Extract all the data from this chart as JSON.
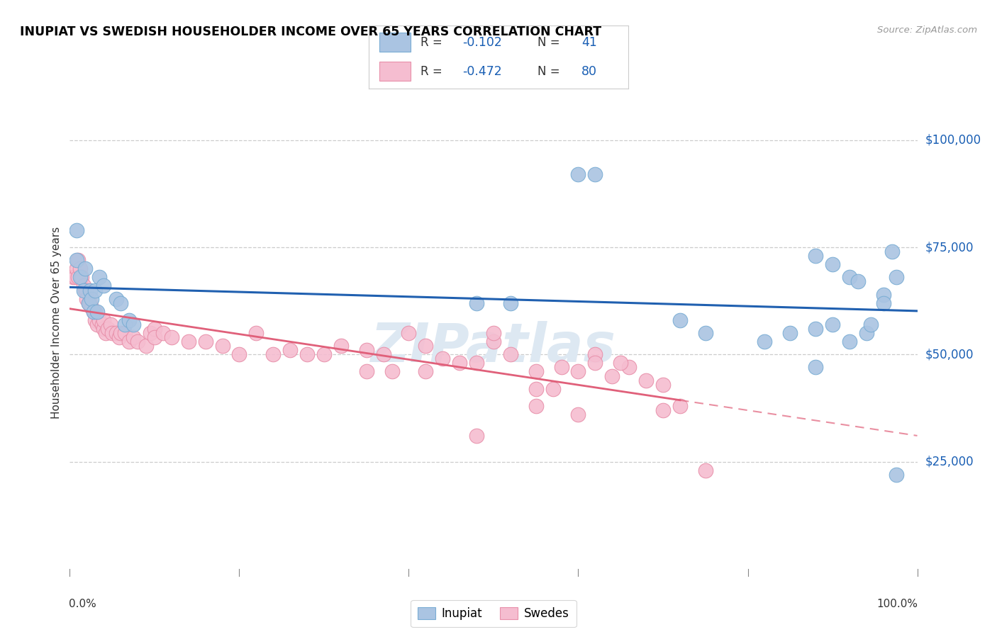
{
  "title": "INUPIAT VS SWEDISH HOUSEHOLDER INCOME OVER 65 YEARS CORRELATION CHART",
  "source": "Source: ZipAtlas.com",
  "ylabel": "Householder Income Over 65 years",
  "ytick_values": [
    25000,
    50000,
    75000,
    100000
  ],
  "ylim": [
    0,
    115000
  ],
  "xlim": [
    0.0,
    1.0
  ],
  "inupiat_color": "#aac4e2",
  "inupiat_edge": "#7aadd4",
  "swedes_color": "#f5bdd0",
  "swedes_edge": "#e890aa",
  "trendline_blue": "#2060b0",
  "trendline_pink": "#e0607a",
  "legend_text_color": "#1a5fb4",
  "watermark": "ZIPatlas",
  "inupiat_x": [
    0.008,
    0.008,
    0.012,
    0.016,
    0.018,
    0.022,
    0.024,
    0.026,
    0.028,
    0.03,
    0.032,
    0.035,
    0.04,
    0.055,
    0.06,
    0.065,
    0.07,
    0.075,
    0.48,
    0.52,
    0.6,
    0.62,
    0.88,
    0.9,
    0.92,
    0.93,
    0.94,
    0.96,
    0.97,
    0.975,
    0.88,
    0.9,
    0.92,
    0.945,
    0.96,
    0.72,
    0.75,
    0.82,
    0.85,
    0.88,
    0.975
  ],
  "inupiat_y": [
    79000,
    72000,
    68000,
    65000,
    70000,
    62000,
    65000,
    63000,
    60000,
    65000,
    60000,
    68000,
    66000,
    63000,
    62000,
    57000,
    58000,
    57000,
    62000,
    62000,
    92000,
    92000,
    73000,
    71000,
    68000,
    67000,
    55000,
    64000,
    74000,
    68000,
    56000,
    57000,
    53000,
    57000,
    62000,
    58000,
    55000,
    53000,
    55000,
    47000,
    22000
  ],
  "swedes_x": [
    0.004,
    0.006,
    0.008,
    0.01,
    0.01,
    0.012,
    0.014,
    0.016,
    0.018,
    0.02,
    0.02,
    0.022,
    0.024,
    0.026,
    0.028,
    0.03,
    0.03,
    0.032,
    0.035,
    0.038,
    0.04,
    0.04,
    0.042,
    0.045,
    0.048,
    0.05,
    0.055,
    0.058,
    0.06,
    0.065,
    0.07,
    0.075,
    0.08,
    0.09,
    0.095,
    0.1,
    0.1,
    0.11,
    0.12,
    0.14,
    0.16,
    0.18,
    0.2,
    0.22,
    0.24,
    0.26,
    0.28,
    0.3,
    0.32,
    0.35,
    0.37,
    0.4,
    0.42,
    0.44,
    0.46,
    0.5,
    0.5,
    0.52,
    0.55,
    0.58,
    0.6,
    0.62,
    0.64,
    0.66,
    0.68,
    0.7,
    0.55,
    0.57,
    0.72,
    0.48,
    0.55,
    0.6,
    0.62,
    0.65,
    0.7,
    0.42,
    0.35,
    0.38,
    0.48,
    0.75
  ],
  "swedes_y": [
    68000,
    68000,
    70000,
    72000,
    68000,
    70000,
    68000,
    66000,
    65000,
    65000,
    63000,
    62000,
    62000,
    61000,
    60000,
    60000,
    58000,
    57000,
    58000,
    57000,
    56000,
    58000,
    55000,
    56000,
    57000,
    55000,
    55000,
    54000,
    55000,
    55000,
    53000,
    54000,
    53000,
    52000,
    55000,
    56000,
    54000,
    55000,
    54000,
    53000,
    53000,
    52000,
    50000,
    55000,
    50000,
    51000,
    50000,
    50000,
    52000,
    51000,
    50000,
    55000,
    52000,
    49000,
    48000,
    53000,
    55000,
    50000,
    46000,
    47000,
    46000,
    50000,
    45000,
    47000,
    44000,
    43000,
    42000,
    42000,
    38000,
    48000,
    38000,
    36000,
    48000,
    48000,
    37000,
    46000,
    46000,
    46000,
    31000,
    23000
  ]
}
